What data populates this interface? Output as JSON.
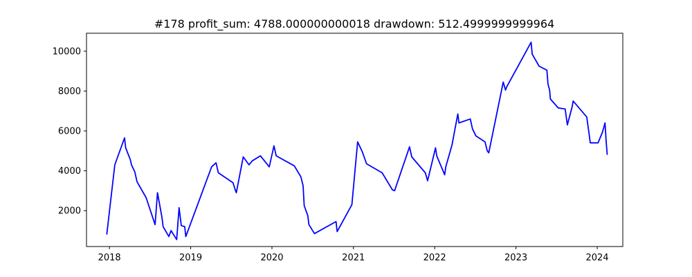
{
  "chart_data": {
    "type": "line",
    "title": "#178   profit_sum: 4788.000000000018 drawdown: 512.4999999999964",
    "xlabel": "",
    "ylabel": "",
    "x_axis_type": "date",
    "xlim": [
      "2017-09-20",
      "2024-04-25"
    ],
    "ylim": [
      200,
      10900
    ],
    "x_ticks": [
      "2018-01-01",
      "2019-01-01",
      "2020-01-01",
      "2021-01-01",
      "2022-01-01",
      "2023-01-01",
      "2024-01-01"
    ],
    "x_tick_labels": [
      "2018",
      "2019",
      "2020",
      "2021",
      "2022",
      "2023",
      "2024"
    ],
    "y_ticks": [
      2000,
      4000,
      6000,
      8000,
      10000
    ],
    "y_tick_labels": [
      "2000",
      "4000",
      "6000",
      "8000",
      "10000"
    ],
    "grid": false,
    "line_color": "#0000ff",
    "series": [
      {
        "x": [
          "2017-12-20",
          "2018-01-25",
          "2018-03-10",
          "2018-03-15",
          "2018-04-05",
          "2018-04-10",
          "2018-04-25",
          "2018-05-05",
          "2018-06-15",
          "2018-07-25",
          "2018-08-05",
          "2018-08-25",
          "2018-08-30",
          "2018-09-25",
          "2018-10-05",
          "2018-10-30",
          "2018-11-10",
          "2018-11-20",
          "2018-12-05",
          "2018-12-10",
          "2019-04-05",
          "2019-04-25",
          "2019-05-05",
          "2019-07-10",
          "2019-07-20",
          "2019-07-25",
          "2019-08-25",
          "2019-09-20",
          "2019-10-05",
          "2019-11-10",
          "2019-12-20",
          "2020-01-10",
          "2020-01-20",
          "2020-04-10",
          "2020-05-10",
          "2020-05-20",
          "2020-05-25",
          "2020-06-10",
          "2020-06-15",
          "2020-07-10",
          "2020-10-15",
          "2020-10-20",
          "2020-12-25",
          "2021-01-20",
          "2021-02-10",
          "2021-03-01",
          "2021-05-10",
          "2021-06-25",
          "2021-07-05",
          "2021-09-10",
          "2021-09-20",
          "2021-11-20",
          "2021-11-30",
          "2022-01-05",
          "2022-01-10",
          "2022-02-15",
          "2022-02-20",
          "2022-03-20",
          "2022-04-15",
          "2022-04-20",
          "2022-06-10",
          "2022-06-20",
          "2022-07-05",
          "2022-08-15",
          "2022-08-25",
          "2022-09-01",
          "2022-11-05",
          "2022-11-15",
          "2022-11-20",
          "2023-03-10",
          "2023-03-15",
          "2023-04-15",
          "2023-05-20",
          "2023-05-25",
          "2023-06-01",
          "2023-06-05",
          "2023-07-10",
          "2023-08-10",
          "2023-08-20",
          "2023-09-10",
          "2023-09-15",
          "2023-11-15",
          "2023-11-25",
          "2023-12-01",
          "2024-01-05",
          "2024-01-25",
          "2024-02-05",
          "2024-02-10",
          "2024-02-15"
        ],
        "y": [
          800,
          4300,
          5650,
          5150,
          4550,
          4300,
          3950,
          3450,
          2650,
          1300,
          2900,
          1650,
          1200,
          700,
          1000,
          550,
          2150,
          1250,
          1200,
          700,
          4200,
          4400,
          3900,
          3400,
          3050,
          2900,
          4700,
          4300,
          4500,
          4750,
          4200,
          5250,
          4750,
          4250,
          3700,
          3250,
          2250,
          1750,
          1300,
          850,
          1450,
          950,
          2300,
          5450,
          4950,
          4350,
          3900,
          3050,
          3000,
          5200,
          4700,
          3900,
          3500,
          5150,
          4750,
          3800,
          4200,
          5300,
          6850,
          6400,
          6600,
          6100,
          5750,
          5450,
          5000,
          4900,
          8450,
          8050,
          8200,
          10450,
          9850,
          9250,
          9050,
          8350,
          8050,
          7600,
          7150,
          7100,
          6300,
          7200,
          7500,
          6700,
          5900,
          5400,
          5400,
          5950,
          6400,
          5500,
          4800
        ]
      }
    ]
  }
}
